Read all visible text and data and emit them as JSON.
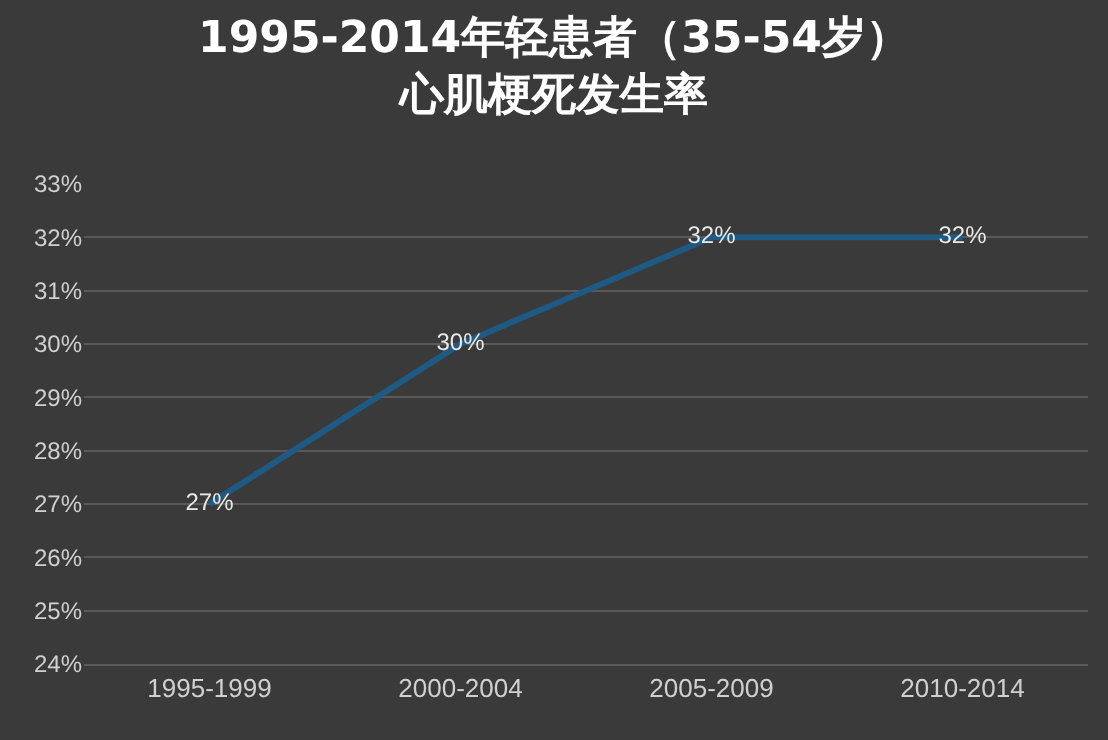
{
  "chart_data": {
    "type": "line",
    "title": "1995-2014年轻患者（35-54岁）心肌梗死发生率",
    "categories": [
      "1995-1999",
      "2000-2004",
      "2005-2009",
      "2010-2014"
    ],
    "series": [
      {
        "color": "#1f5a84",
        "values": [
          27,
          30,
          32,
          32
        ],
        "value_labels": [
          "27%",
          "30%",
          "32%",
          "32%"
        ]
      }
    ],
    "ylim": [
      24,
      33
    ],
    "yticks": [
      {
        "value": 24,
        "label": "24%"
      },
      {
        "value": 25,
        "label": "25%"
      },
      {
        "value": 26,
        "label": "26%"
      },
      {
        "value": 27,
        "label": "27%"
      },
      {
        "value": 28,
        "label": "28%"
      },
      {
        "value": 29,
        "label": "29%"
      },
      {
        "value": 30,
        "label": "30%"
      },
      {
        "value": 31,
        "label": "31%"
      },
      {
        "value": 32,
        "label": "32%"
      },
      {
        "value": 33,
        "label": "33%"
      }
    ],
    "grid": "y",
    "marker": "none",
    "line_style": "solid"
  }
}
